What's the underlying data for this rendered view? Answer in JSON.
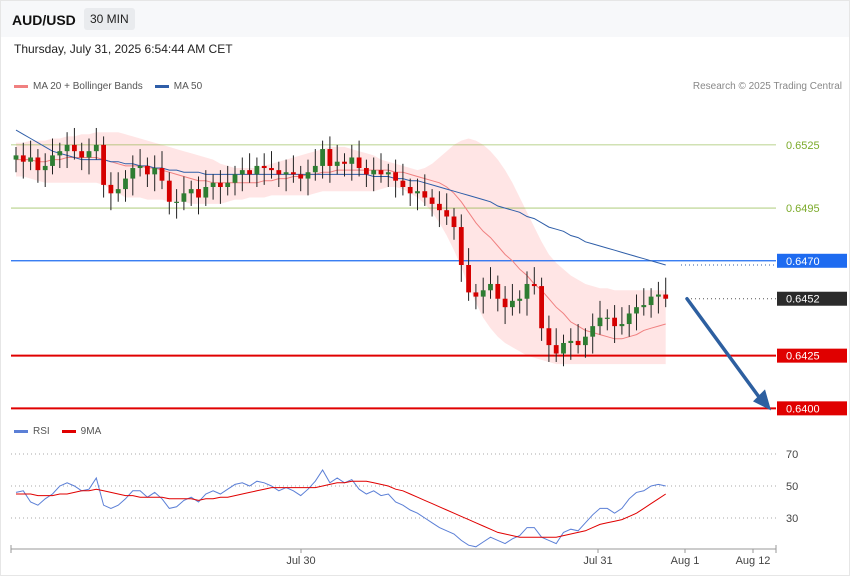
{
  "header": {
    "symbol": "AUD/USD",
    "timeframe": "30 MIN",
    "datetime": "Thursday, July 31, 2025 6:54:44 AM CET"
  },
  "legend": {
    "ma20": {
      "label": "MA 20 + Bollinger Bands",
      "color": "#f08080"
    },
    "ma50": {
      "label": "MA 50",
      "color": "#2f5ea8"
    },
    "rsi": {
      "label": "RSI",
      "color": "#5b7fd6"
    },
    "rsi_ma": {
      "label": "9MA",
      "color": "#e00000"
    }
  },
  "copyright": "Research © 2025 Trading Central",
  "chart_data": {
    "type": "candlestick",
    "price_axis": {
      "min": 0.6394,
      "max": 0.6542
    },
    "levels": [
      {
        "label": "0.6525",
        "value": 0.6525,
        "kind": "resistance",
        "color": "#7cab2a"
      },
      {
        "label": "0.6495",
        "value": 0.6495,
        "kind": "resistance",
        "color": "#7cab2a"
      },
      {
        "label": "0.6470",
        "value": 0.647,
        "kind": "pivot",
        "color": "#1e6bf0"
      },
      {
        "label": "0.6452",
        "value": 0.6452,
        "kind": "last",
        "color": "#2b2b2b"
      },
      {
        "label": "0.6425",
        "value": 0.6425,
        "kind": "target",
        "color": "#e00000"
      },
      {
        "label": "0.6400",
        "value": 0.64,
        "kind": "target",
        "color": "#e00000"
      }
    ],
    "x_labels": [
      "Jul 30",
      "Jul 31",
      "Aug 1",
      "Aug 12"
    ],
    "rsi_axis": {
      "min": 10,
      "max": 75,
      "ticks": [
        "70",
        "50",
        "30"
      ]
    },
    "closes": [
      0.652,
      0.6517,
      0.6519,
      0.6513,
      0.6515,
      0.652,
      0.6522,
      0.6525,
      0.6522,
      0.6519,
      0.6522,
      0.6525,
      0.6506,
      0.6502,
      0.6504,
      0.6509,
      0.6514,
      0.6515,
      0.6511,
      0.6514,
      0.6508,
      0.6498,
      0.6498,
      0.6502,
      0.6504,
      0.65,
      0.6505,
      0.6507,
      0.6505,
      0.6507,
      0.6511,
      0.6513,
      0.6511,
      0.6515,
      0.6514,
      0.6513,
      0.6511,
      0.6512,
      0.6511,
      0.6509,
      0.6512,
      0.6515,
      0.6523,
      0.6515,
      0.6517,
      0.6516,
      0.6519,
      0.6514,
      0.6511,
      0.6513,
      0.6511,
      0.6512,
      0.6508,
      0.6505,
      0.6502,
      0.6503,
      0.65,
      0.6497,
      0.6494,
      0.6491,
      0.6486,
      0.6468,
      0.6455,
      0.6453,
      0.6456,
      0.6459,
      0.6452,
      0.6448,
      0.6451,
      0.6452,
      0.6459,
      0.6458,
      0.6438,
      0.643,
      0.6426,
      0.6431,
      0.6432,
      0.643,
      0.6434,
      0.6439,
      0.6443,
      0.6443,
      0.6439,
      0.644,
      0.6445,
      0.6448,
      0.6449,
      0.6453,
      0.6454,
      0.6452
    ],
    "ma20": [
      0.6518,
      0.6518,
      0.6518,
      0.6517,
      0.6517,
      0.6518,
      0.6518,
      0.6519,
      0.6519,
      0.6519,
      0.6519,
      0.6519,
      0.6518,
      0.6517,
      0.6516,
      0.6515,
      0.6515,
      0.6515,
      0.6514,
      0.6514,
      0.6513,
      0.6512,
      0.6511,
      0.651,
      0.6509,
      0.6508,
      0.6508,
      0.6507,
      0.6507,
      0.6507,
      0.6507,
      0.6507,
      0.6507,
      0.6507,
      0.6508,
      0.6508,
      0.6509,
      0.6509,
      0.651,
      0.651,
      0.6511,
      0.6511,
      0.6512,
      0.6512,
      0.6513,
      0.6513,
      0.6513,
      0.6513,
      0.6513,
      0.6513,
      0.6513,
      0.6513,
      0.6512,
      0.6512,
      0.6511,
      0.651,
      0.6509,
      0.6508,
      0.6507,
      0.6505,
      0.6502,
      0.6498,
      0.6493,
      0.6488,
      0.6484,
      0.6481,
      0.6477,
      0.6473,
      0.647,
      0.6466,
      0.6463,
      0.6459,
      0.6456,
      0.6452,
      0.6448,
      0.6445,
      0.6441,
      0.6439,
      0.6437,
      0.6436,
      0.6435,
      0.6434,
      0.6433,
      0.6433,
      0.6434,
      0.6435,
      0.6437,
      0.6438,
      0.6439,
      0.644
    ],
    "bb_upper": [
      0.6526,
      0.6526,
      0.6527,
      0.6527,
      0.6527,
      0.6528,
      0.6528,
      0.6529,
      0.6529,
      0.653,
      0.653,
      0.6531,
      0.6531,
      0.6531,
      0.6531,
      0.653,
      0.6529,
      0.6528,
      0.6527,
      0.6526,
      0.6525,
      0.6524,
      0.6523,
      0.6522,
      0.6521,
      0.652,
      0.6519,
      0.6518,
      0.6516,
      0.6515,
      0.6514,
      0.6514,
      0.6514,
      0.6514,
      0.6515,
      0.6516,
      0.6517,
      0.6518,
      0.6519,
      0.652,
      0.6521,
      0.6522,
      0.6523,
      0.6524,
      0.6524,
      0.6524,
      0.6523,
      0.6522,
      0.6521,
      0.652,
      0.6518,
      0.6517,
      0.6516,
      0.6515,
      0.6514,
      0.6513,
      0.6514,
      0.6516,
      0.6519,
      0.6522,
      0.6525,
      0.6527,
      0.6528,
      0.6527,
      0.6525,
      0.6522,
      0.6518,
      0.6513,
      0.6507,
      0.65,
      0.6493,
      0.6486,
      0.6479,
      0.6473,
      0.6469,
      0.6466,
      0.6463,
      0.6461,
      0.6459,
      0.6458,
      0.6457,
      0.6457,
      0.6456,
      0.6456,
      0.6456,
      0.6456,
      0.6456,
      0.6456,
      0.6456,
      0.6456
    ],
    "bb_lower": [
      0.651,
      0.651,
      0.6509,
      0.6508,
      0.6507,
      0.6507,
      0.6507,
      0.6507,
      0.6507,
      0.6507,
      0.6507,
      0.6507,
      0.6506,
      0.6504,
      0.6502,
      0.65,
      0.65,
      0.65,
      0.6499,
      0.6499,
      0.6499,
      0.6498,
      0.6498,
      0.6498,
      0.6497,
      0.6497,
      0.6497,
      0.6497,
      0.6497,
      0.6498,
      0.6499,
      0.6499,
      0.65,
      0.65,
      0.65,
      0.6501,
      0.6501,
      0.6501,
      0.6501,
      0.6501,
      0.6501,
      0.6502,
      0.6503,
      0.6503,
      0.6503,
      0.6503,
      0.6503,
      0.6503,
      0.6503,
      0.6503,
      0.6504,
      0.6505,
      0.6505,
      0.6504,
      0.6502,
      0.65,
      0.6497,
      0.6493,
      0.6488,
      0.6482,
      0.6475,
      0.6467,
      0.6458,
      0.645,
      0.6443,
      0.6438,
      0.6434,
      0.6431,
      0.6429,
      0.6427,
      0.6425,
      0.6424,
      0.6423,
      0.6422,
      0.6421,
      0.6421,
      0.6421,
      0.6421,
      0.6421,
      0.6421,
      0.6421,
      0.6421,
      0.6421,
      0.6421,
      0.6421,
      0.6421,
      0.6421,
      0.6421,
      0.6421,
      0.6421
    ],
    "ma50": [
      0.6532,
      0.653,
      0.6528,
      0.6526,
      0.6524,
      0.6522,
      0.6521,
      0.652,
      0.6519,
      0.6518,
      0.6518,
      0.6518,
      0.6518,
      0.6517,
      0.6517,
      0.6516,
      0.6516,
      0.6515,
      0.6515,
      0.6514,
      0.6514,
      0.6513,
      0.6513,
      0.6512,
      0.6512,
      0.6512,
      0.6511,
      0.6511,
      0.6511,
      0.6511,
      0.6511,
      0.6511,
      0.6511,
      0.6511,
      0.6511,
      0.6511,
      0.6511,
      0.6511,
      0.6511,
      0.6511,
      0.6511,
      0.6511,
      0.6511,
      0.6511,
      0.6511,
      0.6511,
      0.6511,
      0.6511,
      0.6511,
      0.651,
      0.651,
      0.651,
      0.6509,
      0.6509,
      0.6508,
      0.6508,
      0.6507,
      0.6506,
      0.6505,
      0.6504,
      0.6503,
      0.6502,
      0.6501,
      0.65,
      0.6499,
      0.6498,
      0.6496,
      0.6495,
      0.6494,
      0.6493,
      0.6491,
      0.649,
      0.6488,
      0.6486,
      0.6485,
      0.6484,
      0.6482,
      0.6481,
      0.6479,
      0.6478,
      0.6477,
      0.6476,
      0.6475,
      0.6474,
      0.6473,
      0.6472,
      0.6471,
      0.647,
      0.6469,
      0.6468
    ],
    "rsi": [
      46,
      47,
      40,
      38,
      42,
      45,
      50,
      52,
      50,
      47,
      48,
      55,
      38,
      36,
      38,
      42,
      47,
      47,
      43,
      46,
      42,
      36,
      37,
      41,
      43,
      40,
      45,
      47,
      45,
      48,
      51,
      52,
      50,
      53,
      52,
      50,
      47,
      49,
      47,
      44,
      48,
      53,
      60,
      52,
      55,
      52,
      54,
      48,
      45,
      47,
      44,
      45,
      40,
      38,
      35,
      33,
      30,
      27,
      24,
      22,
      20,
      16,
      13,
      12,
      15,
      18,
      16,
      14,
      17,
      19,
      24,
      24,
      18,
      16,
      14,
      21,
      23,
      22,
      27,
      32,
      36,
      36,
      33,
      36,
      42,
      46,
      47,
      50,
      51,
      50
    ],
    "rsi_ma": [
      45,
      45,
      45,
      44,
      44,
      44,
      45,
      45,
      46,
      47,
      47,
      48,
      47,
      46,
      45,
      44,
      44,
      43,
      43,
      43,
      43,
      42,
      42,
      42,
      42,
      41,
      42,
      42,
      43,
      43,
      44,
      45,
      46,
      47,
      48,
      49,
      49,
      49,
      49,
      49,
      49,
      49,
      50,
      51,
      52,
      52,
      53,
      53,
      53,
      52,
      51,
      50,
      48,
      47,
      45,
      43,
      41,
      39,
      37,
      35,
      33,
      31,
      29,
      27,
      25,
      23,
      21,
      20,
      19,
      18,
      18,
      18,
      18,
      18,
      18,
      19,
      20,
      21,
      22,
      24,
      26,
      27,
      28,
      29,
      31,
      33,
      36,
      39,
      42,
      45
    ],
    "forecast": {
      "from": 0.6452,
      "to": 0.64
    }
  }
}
